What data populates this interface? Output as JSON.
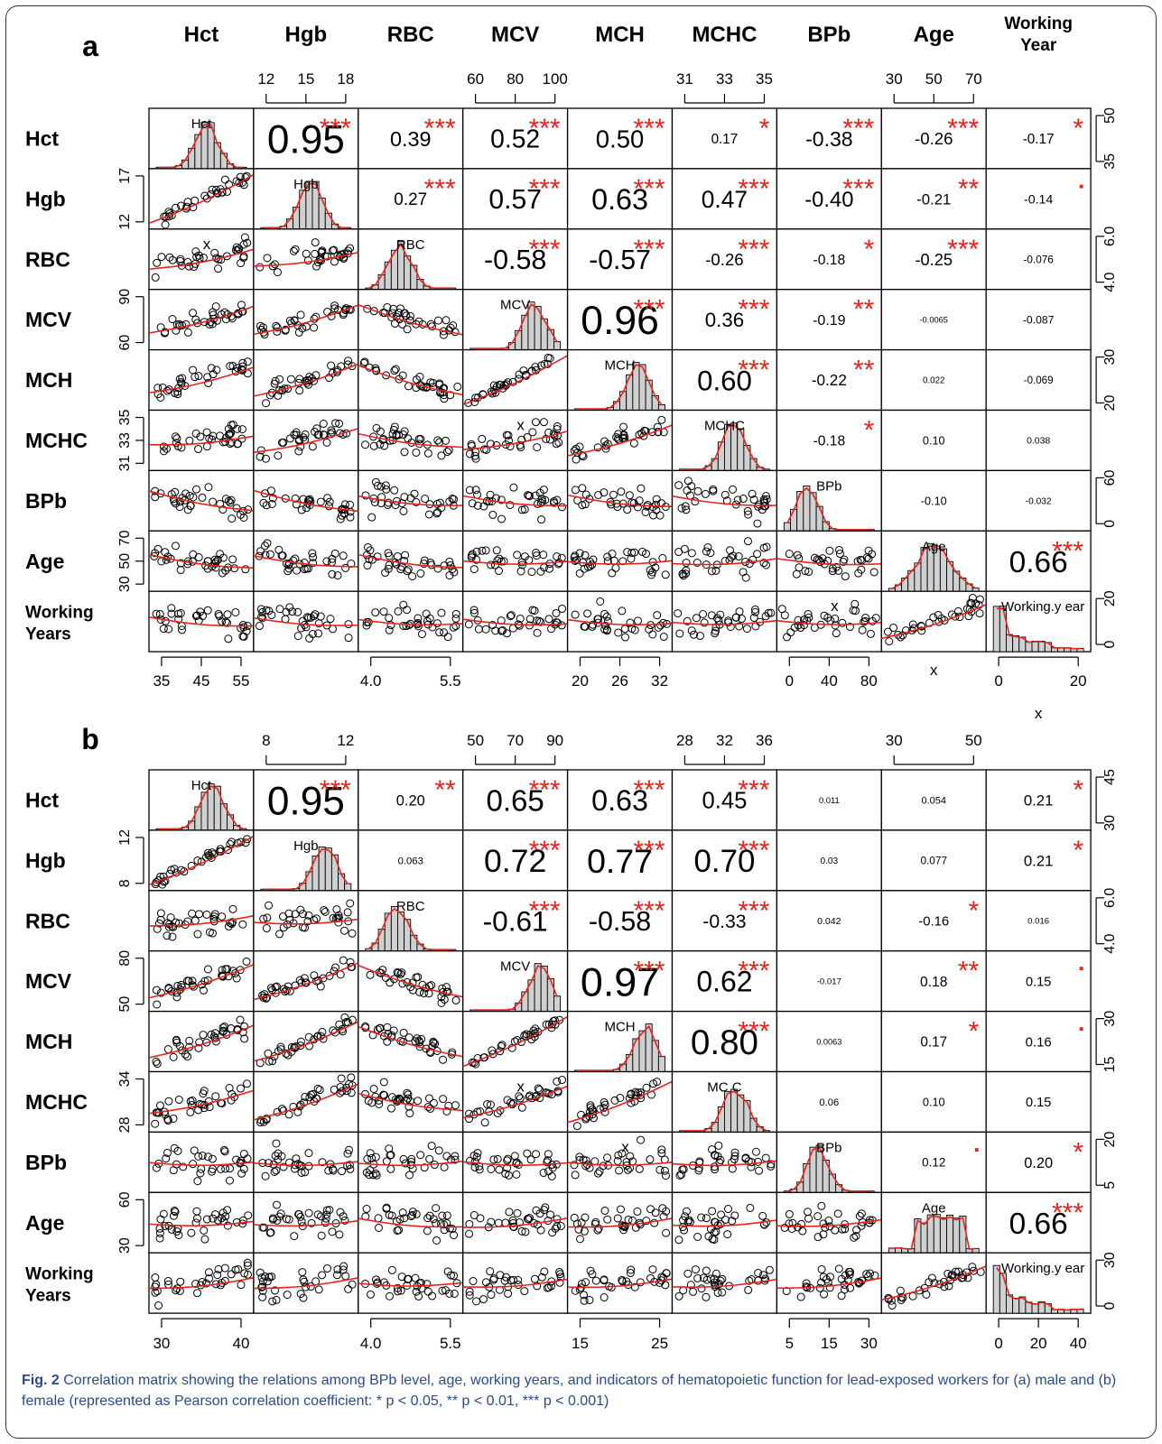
{
  "caption": {
    "fig_label": "Fig. 2",
    "text": "Correlation matrix showing the relations among BPb level, age, working years, and indicators of hematopoietic function for lead-exposed workers for (a) male and (b) female (represented as Pearson correlation coefficient: * p < 0.05, ** p < 0.01, *** p < 0.001)"
  },
  "colors": {
    "fit": "#e8231c",
    "stars": "#e8231c",
    "hist_fill": "#d0d0d0",
    "ink": "#000000"
  },
  "chart_data": [
    {
      "type": "scatter",
      "panel_label": "a",
      "variables": [
        "Hct",
        "Hgb",
        "RBC",
        "MCV",
        "MCH",
        "MCHC",
        "BPb",
        "Age",
        "Working Year"
      ],
      "row_labels": [
        "Hct",
        "Hgb",
        "RBC",
        "MCV",
        "MCH",
        "MCHC",
        "BPb",
        "Age",
        "Working\nYears"
      ],
      "column_headers": [
        "Hct",
        "Hgb",
        "RBC",
        "MCV",
        "MCH",
        "MCHC",
        "BPb",
        "Age",
        "Working\nYear"
      ],
      "diagonal_labels": [
        "Hct",
        "Hgb",
        "RBC",
        "MCV",
        "MCH",
        "MCHC",
        "BPb",
        "Age",
        "Working.y ear"
      ],
      "ranges": [
        [
          35,
          55
        ],
        [
          11,
          19
        ],
        [
          3.8,
          6.8
        ],
        [
          58,
          100
        ],
        [
          18,
          35
        ],
        [
          30.5,
          36
        ],
        [
          0,
          100
        ],
        [
          25,
          85
        ],
        [
          0,
          38
        ]
      ],
      "ticks": {
        "top": {
          "1": [
            "12",
            "15",
            "18"
          ],
          "3": [
            "60",
            "80",
            "100"
          ],
          "5": [
            "31",
            "33",
            "35"
          ],
          "7": [
            "30",
            "50",
            "70"
          ]
        },
        "bottom": {
          "0": [
            "35",
            "45",
            "55"
          ],
          "2": [
            "4.0",
            "5.5"
          ],
          "4": [
            "20",
            "26",
            "32"
          ],
          "6": [
            "0",
            "40",
            "80"
          ],
          "8": [
            "0",
            "20"
          ]
        },
        "left": {
          "1": [
            "12",
            "17"
          ],
          "3": [
            "60",
            "90"
          ],
          "5": [
            "31",
            "33",
            "35"
          ],
          "7": [
            "30",
            "50",
            "70"
          ]
        },
        "right": {
          "0": [
            "35",
            "50"
          ],
          "2": [
            "4.0",
            "6.0"
          ],
          "4": [
            "20",
            "30"
          ],
          "6": [
            "0",
            "60"
          ],
          "8": [
            "0",
            "20"
          ]
        }
      },
      "correlations": [
        {
          "i": 0,
          "j": 1,
          "r": "0.95",
          "sig": "***"
        },
        {
          "i": 0,
          "j": 2,
          "r": "0.39",
          "sig": "***"
        },
        {
          "i": 0,
          "j": 3,
          "r": "0.52",
          "sig": "***"
        },
        {
          "i": 0,
          "j": 4,
          "r": "0.50",
          "sig": "***"
        },
        {
          "i": 0,
          "j": 5,
          "r": "0.17",
          "sig": "*"
        },
        {
          "i": 0,
          "j": 6,
          "r": "-0.38",
          "sig": "***"
        },
        {
          "i": 0,
          "j": 7,
          "r": "-0.26",
          "sig": "***"
        },
        {
          "i": 0,
          "j": 8,
          "r": "-0.17",
          "sig": "*"
        },
        {
          "i": 1,
          "j": 2,
          "r": "0.27",
          "sig": "***"
        },
        {
          "i": 1,
          "j": 3,
          "r": "0.57",
          "sig": "***"
        },
        {
          "i": 1,
          "j": 4,
          "r": "0.63",
          "sig": "***"
        },
        {
          "i": 1,
          "j": 5,
          "r": "0.47",
          "sig": "***"
        },
        {
          "i": 1,
          "j": 6,
          "r": "-0.40",
          "sig": "***"
        },
        {
          "i": 1,
          "j": 7,
          "r": "-0.21",
          "sig": "**"
        },
        {
          "i": 1,
          "j": 8,
          "r": "-0.14",
          "sig": "·"
        },
        {
          "i": 2,
          "j": 3,
          "r": "-0.58",
          "sig": "***"
        },
        {
          "i": 2,
          "j": 4,
          "r": "-0.57",
          "sig": "***"
        },
        {
          "i": 2,
          "j": 5,
          "r": "-0.26",
          "sig": "***"
        },
        {
          "i": 2,
          "j": 6,
          "r": "-0.18",
          "sig": "*"
        },
        {
          "i": 2,
          "j": 7,
          "r": "-0.25",
          "sig": "***"
        },
        {
          "i": 2,
          "j": 8,
          "r": "-0.076",
          "sig": ""
        },
        {
          "i": 3,
          "j": 4,
          "r": "0.96",
          "sig": "***"
        },
        {
          "i": 3,
          "j": 5,
          "r": "0.36",
          "sig": "***"
        },
        {
          "i": 3,
          "j": 6,
          "r": "-0.19",
          "sig": "**"
        },
        {
          "i": 3,
          "j": 7,
          "r": "-0.0065",
          "sig": ""
        },
        {
          "i": 3,
          "j": 8,
          "r": "-0.087",
          "sig": ""
        },
        {
          "i": 4,
          "j": 5,
          "r": "0.60",
          "sig": "***"
        },
        {
          "i": 4,
          "j": 6,
          "r": "-0.22",
          "sig": "**"
        },
        {
          "i": 4,
          "j": 7,
          "r": "0.022",
          "sig": ""
        },
        {
          "i": 4,
          "j": 8,
          "r": "-0.069",
          "sig": ""
        },
        {
          "i": 5,
          "j": 6,
          "r": "-0.18",
          "sig": "*"
        },
        {
          "i": 5,
          "j": 7,
          "r": "0.10",
          "sig": ""
        },
        {
          "i": 5,
          "j": 8,
          "r": "0.038",
          "sig": ""
        },
        {
          "i": 6,
          "j": 7,
          "r": "-0.10",
          "sig": ""
        },
        {
          "i": 6,
          "j": 8,
          "r": "-0.032",
          "sig": ""
        },
        {
          "i": 7,
          "j": 8,
          "r": "0.66",
          "sig": "***"
        }
      ],
      "annotations": [
        {
          "row": 2,
          "col": 0,
          "text": "x"
        },
        {
          "row": 5,
          "col": 3,
          "text": "x"
        },
        {
          "row": 8,
          "col": 6,
          "text": "x"
        },
        {
          "row": 8,
          "col": 7,
          "text": "x",
          "below": true
        },
        {
          "row": 8,
          "col": 8,
          "text": "x",
          "below": true
        }
      ]
    },
    {
      "type": "scatter",
      "panel_label": "b",
      "variables": [
        "Hct",
        "Hgb",
        "RBC",
        "MCV",
        "MCH",
        "MCHC",
        "BPb",
        "Age",
        "Working Year"
      ],
      "row_labels": [
        "Hct",
        "Hgb",
        "RBC",
        "MCV",
        "MCH",
        "MCHC",
        "BPb",
        "Age",
        "Working\nYears"
      ],
      "column_headers": [],
      "diagonal_labels": [
        "Hct",
        "Hgb",
        "RBC",
        "MCV",
        "MCH",
        "MC C",
        "BPb",
        "Age",
        "Working.y ear"
      ],
      "ranges": [
        [
          25,
          48
        ],
        [
          7,
          15.5
        ],
        [
          3.7,
          6.8
        ],
        [
          48,
          98
        ],
        [
          12,
          36
        ],
        [
          27.5,
          37
        ],
        [
          0,
          34
        ],
        [
          22,
          65
        ],
        [
          0,
          36
        ]
      ],
      "ticks": {
        "top": {
          "1": [
            "8",
            "12"
          ],
          "3": [
            "50",
            "70",
            "90"
          ],
          "5": [
            "28",
            "32",
            "36"
          ],
          "7": [
            "30",
            "50"
          ]
        },
        "bottom": {
          "0": [
            "30",
            "40"
          ],
          "2": [
            "4.0",
            "5.5"
          ],
          "4": [
            "15",
            "25"
          ],
          "6": [
            "5",
            "15",
            "30"
          ],
          "8": [
            "0",
            "20",
            "40"
          ]
        },
        "left": {
          "1": [
            "8",
            "12"
          ],
          "3": [
            "50",
            "80"
          ],
          "5": [
            "28",
            "34"
          ],
          "7": [
            "30",
            "60"
          ]
        },
        "right": {
          "0": [
            "30",
            "45"
          ],
          "2": [
            "4.0",
            "6.0"
          ],
          "4": [
            "15",
            "30"
          ],
          "6": [
            "5",
            "20"
          ],
          "8": [
            "0",
            "30"
          ]
        }
      },
      "correlations": [
        {
          "i": 0,
          "j": 1,
          "r": "0.95",
          "sig": "***"
        },
        {
          "i": 0,
          "j": 2,
          "r": "0.20",
          "sig": "**"
        },
        {
          "i": 0,
          "j": 3,
          "r": "0.65",
          "sig": "***"
        },
        {
          "i": 0,
          "j": 4,
          "r": "0.63",
          "sig": "***"
        },
        {
          "i": 0,
          "j": 5,
          "r": "0.45",
          "sig": "***"
        },
        {
          "i": 0,
          "j": 6,
          "r": "0.011",
          "sig": ""
        },
        {
          "i": 0,
          "j": 7,
          "r": "0.054",
          "sig": ""
        },
        {
          "i": 0,
          "j": 8,
          "r": "0.21",
          "sig": "*"
        },
        {
          "i": 1,
          "j": 2,
          "r": "0.063",
          "sig": ""
        },
        {
          "i": 1,
          "j": 3,
          "r": "0.72",
          "sig": "***"
        },
        {
          "i": 1,
          "j": 4,
          "r": "0.77",
          "sig": "***"
        },
        {
          "i": 1,
          "j": 5,
          "r": "0.70",
          "sig": "***"
        },
        {
          "i": 1,
          "j": 6,
          "r": "0.03",
          "sig": ""
        },
        {
          "i": 1,
          "j": 7,
          "r": "0.077",
          "sig": ""
        },
        {
          "i": 1,
          "j": 8,
          "r": "0.21",
          "sig": "*"
        },
        {
          "i": 2,
          "j": 3,
          "r": "-0.61",
          "sig": "***"
        },
        {
          "i": 2,
          "j": 4,
          "r": "-0.58",
          "sig": "***"
        },
        {
          "i": 2,
          "j": 5,
          "r": "-0.33",
          "sig": "***"
        },
        {
          "i": 2,
          "j": 6,
          "r": "0.042",
          "sig": ""
        },
        {
          "i": 2,
          "j": 7,
          "r": "-0.16",
          "sig": "*"
        },
        {
          "i": 2,
          "j": 8,
          "r": "0.016",
          "sig": ""
        },
        {
          "i": 3,
          "j": 4,
          "r": "0.97",
          "sig": "***"
        },
        {
          "i": 3,
          "j": 5,
          "r": "0.62",
          "sig": "***"
        },
        {
          "i": 3,
          "j": 6,
          "r": "-0.017",
          "sig": ""
        },
        {
          "i": 3,
          "j": 7,
          "r": "0.18",
          "sig": "**"
        },
        {
          "i": 3,
          "j": 8,
          "r": "0.15",
          "sig": "·"
        },
        {
          "i": 4,
          "j": 5,
          "r": "0.80",
          "sig": "***"
        },
        {
          "i": 4,
          "j": 6,
          "r": "0.0063",
          "sig": ""
        },
        {
          "i": 4,
          "j": 7,
          "r": "0.17",
          "sig": "*"
        },
        {
          "i": 4,
          "j": 8,
          "r": "0.16",
          "sig": "·"
        },
        {
          "i": 5,
          "j": 6,
          "r": "0.06",
          "sig": ""
        },
        {
          "i": 5,
          "j": 7,
          "r": "0.10",
          "sig": ""
        },
        {
          "i": 5,
          "j": 8,
          "r": "0.15",
          "sig": ""
        },
        {
          "i": 6,
          "j": 7,
          "r": "0.12",
          "sig": "·"
        },
        {
          "i": 6,
          "j": 8,
          "r": "0.20",
          "sig": "*"
        },
        {
          "i": 7,
          "j": 8,
          "r": "0.66",
          "sig": "***"
        }
      ],
      "annotations": [
        {
          "row": 5,
          "col": 3,
          "text": "x"
        },
        {
          "row": 6,
          "col": 4,
          "text": "x"
        }
      ]
    }
  ]
}
